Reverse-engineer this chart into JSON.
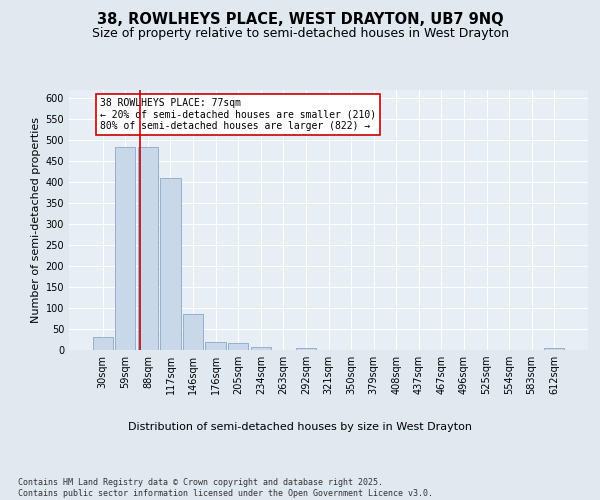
{
  "title_line1": "38, ROWLHEYS PLACE, WEST DRAYTON, UB7 9NQ",
  "title_line2": "Size of property relative to semi-detached houses in West Drayton",
  "xlabel": "Distribution of semi-detached houses by size in West Drayton",
  "ylabel": "Number of semi-detached properties",
  "footer": "Contains HM Land Registry data © Crown copyright and database right 2025.\nContains public sector information licensed under the Open Government Licence v3.0.",
  "annotation_title": "38 ROWLHEYS PLACE: 77sqm",
  "annotation_line1": "← 20% of semi-detached houses are smaller (210)",
  "annotation_line2": "80% of semi-detached houses are larger (822) →",
  "bar_color": "#c8d8e8",
  "bar_edge_color": "#7a9bbf",
  "red_line_color": "#cc0000",
  "annotation_box_color": "#ffffff",
  "annotation_box_edge": "#cc0000",
  "background_color": "#e0e8f0",
  "plot_bg_color": "#e8eef5",
  "grid_color": "#ffffff",
  "categories": [
    "30sqm",
    "59sqm",
    "88sqm",
    "117sqm",
    "146sqm",
    "176sqm",
    "205sqm",
    "234sqm",
    "263sqm",
    "292sqm",
    "321sqm",
    "350sqm",
    "379sqm",
    "408sqm",
    "437sqm",
    "467sqm",
    "496sqm",
    "525sqm",
    "554sqm",
    "583sqm",
    "612sqm"
  ],
  "values": [
    30,
    485,
    485,
    410,
    85,
    18,
    16,
    6,
    0,
    5,
    0,
    0,
    0,
    0,
    0,
    0,
    0,
    0,
    0,
    0,
    5
  ],
  "red_line_x": 1.65,
  "ylim": [
    0,
    620
  ],
  "yticks": [
    0,
    50,
    100,
    150,
    200,
    250,
    300,
    350,
    400,
    450,
    500,
    550,
    600
  ],
  "title_fontsize": 10.5,
  "subtitle_fontsize": 9,
  "axis_label_fontsize": 8,
  "tick_fontsize": 7,
  "annotation_fontsize": 7,
  "footer_fontsize": 6
}
